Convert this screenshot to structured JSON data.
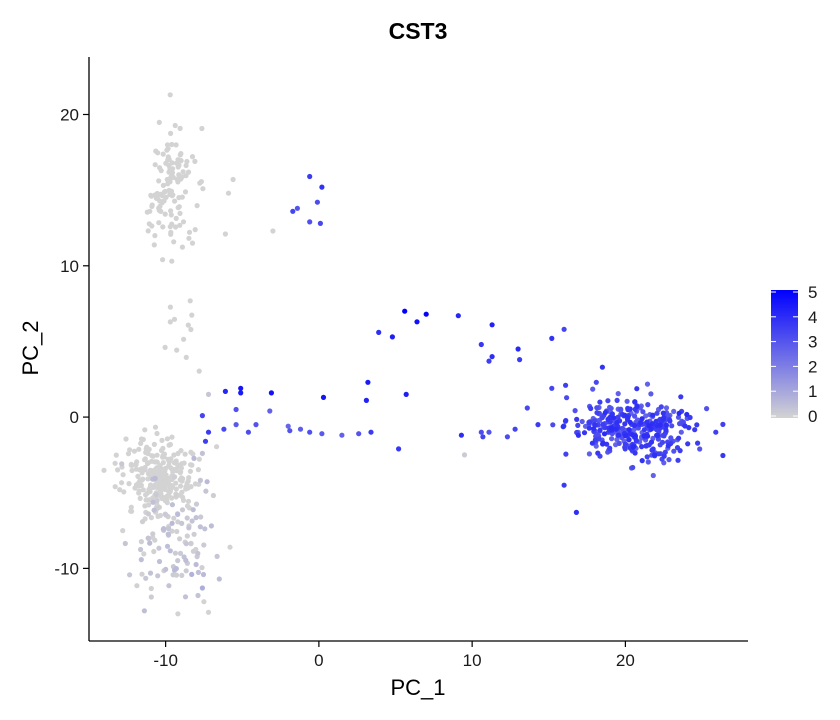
{
  "chart_data": {
    "type": "scatter",
    "title": "CST3",
    "xlabel": "PC_1",
    "ylabel": "PC_2",
    "xlim": [
      -15,
      28
    ],
    "ylim": [
      -14.8,
      23.8
    ],
    "xticks": [
      -10,
      0,
      10,
      20
    ],
    "yticks": [
      -10,
      0,
      10,
      20
    ],
    "grid": false,
    "legend": {
      "placement": "right",
      "type": "colorbar",
      "min": 0,
      "max": 5,
      "ticks": [
        5,
        4,
        3,
        2,
        1,
        0
      ],
      "color_low": "#d3d3d3",
      "color_high": "#0000ff"
    },
    "clusters": [
      {
        "name": "top-left",
        "cx": -9.6,
        "cy": 15.3,
        "sx": 0.85,
        "sy": 1.9,
        "n": 120,
        "emin": 0,
        "emax": 0,
        "seed": 11
      },
      {
        "name": "mid-left",
        "cx": -8.5,
        "cy": 5.8,
        "sx": 0.7,
        "sy": 1.3,
        "n": 12,
        "emin": 0,
        "emax": 0,
        "seed": 23
      },
      {
        "name": "bottom-left-dense",
        "cx": -10.3,
        "cy": -4.0,
        "sx": 1.2,
        "sy": 1.2,
        "n": 260,
        "emin": 0,
        "emax": 0,
        "seed": 37
      },
      {
        "name": "bottom-left-tail",
        "cx": -9.6,
        "cy": -7.8,
        "sx": 1.3,
        "sy": 2.2,
        "n": 110,
        "emin": 0,
        "emax": 0.6,
        "seed": 41
      },
      {
        "name": "right-cluster",
        "cx": 20.6,
        "cy": -0.7,
        "sx": 2.1,
        "sy": 1.05,
        "n": 330,
        "emin": 2.6,
        "emax": 4.0,
        "seed": 53
      }
    ],
    "points": [
      {
        "x": -9.7,
        "y": 21.3,
        "e": 0
      },
      {
        "x": -3.0,
        "y": 12.3,
        "e": 0
      },
      {
        "x": -0.6,
        "y": 15.9,
        "e": 3.6
      },
      {
        "x": 0.2,
        "y": 15.2,
        "e": 3.8
      },
      {
        "x": -0.1,
        "y": 14.2,
        "e": 3.2
      },
      {
        "x": -1.4,
        "y": 13.8,
        "e": 3.0
      },
      {
        "x": -1.7,
        "y": 13.6,
        "e": 3.4
      },
      {
        "x": -0.6,
        "y": 12.9,
        "e": 3.1
      },
      {
        "x": 0.1,
        "y": 12.8,
        "e": 3.3
      },
      {
        "x": 5.6,
        "y": 7.0,
        "e": 5.0
      },
      {
        "x": 7.0,
        "y": 6.8,
        "e": 4.9
      },
      {
        "x": 6.4,
        "y": 6.3,
        "e": 4.6
      },
      {
        "x": 9.1,
        "y": 6.7,
        "e": 4.1
      },
      {
        "x": 11.3,
        "y": 6.1,
        "e": 4.2
      },
      {
        "x": 3.9,
        "y": 5.6,
        "e": 3.9
      },
      {
        "x": 4.8,
        "y": 5.3,
        "e": 4.3
      },
      {
        "x": 10.6,
        "y": 4.8,
        "e": 3.7
      },
      {
        "x": 15.2,
        "y": 5.2,
        "e": 3.8
      },
      {
        "x": 16.0,
        "y": 5.8,
        "e": 3.4
      },
      {
        "x": 11.3,
        "y": 4.0,
        "e": 3.9
      },
      {
        "x": 11.1,
        "y": 3.7,
        "e": 3.5
      },
      {
        "x": 13.0,
        "y": 4.5,
        "e": 4.0
      },
      {
        "x": 13.1,
        "y": 3.8,
        "e": 3.6
      },
      {
        "x": 18.5,
        "y": 3.3,
        "e": 3.8
      },
      {
        "x": 18.1,
        "y": 2.3,
        "e": 3.3
      },
      {
        "x": 16.1,
        "y": 2.1,
        "e": 3.5
      },
      {
        "x": 15.2,
        "y": 1.9,
        "e": 3.4
      },
      {
        "x": 3.2,
        "y": 2.3,
        "e": 4.4
      },
      {
        "x": 3.1,
        "y": 1.1,
        "e": 4.2
      },
      {
        "x": 5.7,
        "y": 1.5,
        "e": 4.3
      },
      {
        "x": 0.3,
        "y": 1.3,
        "e": 4.5
      },
      {
        "x": -3.1,
        "y": 1.6,
        "e": 4.6
      },
      {
        "x": -6.1,
        "y": 1.7,
        "e": 4.1
      },
      {
        "x": -5.1,
        "y": 1.9,
        "e": 4.5
      },
      {
        "x": -5.1,
        "y": 1.6,
        "e": 4.4
      },
      {
        "x": -7.2,
        "y": 1.5,
        "e": 0.3
      },
      {
        "x": -7.6,
        "y": 0.1,
        "e": 3.4
      },
      {
        "x": -5.4,
        "y": 0.5,
        "e": 3.1
      },
      {
        "x": -3.2,
        "y": 0.4,
        "e": 2.7
      },
      {
        "x": -5.4,
        "y": -0.5,
        "e": 2.9
      },
      {
        "x": -4.1,
        "y": -0.5,
        "e": 3.0
      },
      {
        "x": -4.6,
        "y": -1.0,
        "e": 3.2
      },
      {
        "x": -6.2,
        "y": -0.8,
        "e": 3.3
      },
      {
        "x": -2.0,
        "y": -0.6,
        "e": 2.6
      },
      {
        "x": -1.9,
        "y": -0.9,
        "e": 3.0
      },
      {
        "x": -1.2,
        "y": -0.8,
        "e": 2.8
      },
      {
        "x": -0.6,
        "y": -1.0,
        "e": 3.1
      },
      {
        "x": 0.2,
        "y": -1.1,
        "e": 2.9
      },
      {
        "x": 1.5,
        "y": -1.2,
        "e": 2.7
      },
      {
        "x": 2.6,
        "y": -1.1,
        "e": 3.0
      },
      {
        "x": 3.4,
        "y": -1.0,
        "e": 3.6
      },
      {
        "x": 5.2,
        "y": -2.1,
        "e": 3.7
      },
      {
        "x": 9.3,
        "y": -1.2,
        "e": 3.9
      },
      {
        "x": 9.5,
        "y": -2.5,
        "e": 0.2
      },
      {
        "x": 10.6,
        "y": -1.0,
        "e": 3.2
      },
      {
        "x": 10.7,
        "y": -1.3,
        "e": 3.4
      },
      {
        "x": 11.1,
        "y": -1.0,
        "e": 3.0
      },
      {
        "x": -7.2,
        "y": -1.0,
        "e": 3.6
      },
      {
        "x": -7.4,
        "y": -1.6,
        "e": 3.5
      },
      {
        "x": -7.6,
        "y": -2.4,
        "e": 0.4
      },
      {
        "x": 16.8,
        "y": -6.3,
        "e": 3.9
      },
      {
        "x": 16.0,
        "y": -4.5,
        "e": 3.6
      },
      {
        "x": 25.9,
        "y": -1.0,
        "e": 3.5
      },
      {
        "x": 12.3,
        "y": -1.3,
        "e": 3.2
      },
      {
        "x": 12.8,
        "y": -0.8,
        "e": 3.4
      },
      {
        "x": 13.6,
        "y": 0.6,
        "e": 3.3
      },
      {
        "x": 14.3,
        "y": -0.5,
        "e": 3.6
      },
      {
        "x": -8.3,
        "y": -10.4,
        "e": 0.8
      },
      {
        "x": -7.6,
        "y": -11.3,
        "e": 0.9
      },
      {
        "x": -7.5,
        "y": -12.2,
        "e": 0
      },
      {
        "x": -7.2,
        "y": -12.9,
        "e": 0
      },
      {
        "x": -9.2,
        "y": -13.0,
        "e": 0
      },
      {
        "x": -6.5,
        "y": -10.7,
        "e": 0.5
      },
      {
        "x": -13.0,
        "y": -4.8,
        "e": 0
      },
      {
        "x": -12.8,
        "y": -7.5,
        "e": 0
      },
      {
        "x": -5.8,
        "y": -8.6,
        "e": 0
      },
      {
        "x": -10.2,
        "y": 10.4,
        "e": 0
      },
      {
        "x": -9.6,
        "y": 10.3,
        "e": 0
      },
      {
        "x": -6.1,
        "y": 12.1,
        "e": 0
      },
      {
        "x": -5.9,
        "y": 14.8,
        "e": 0
      },
      {
        "x": -5.6,
        "y": 15.7,
        "e": 0
      }
    ]
  }
}
